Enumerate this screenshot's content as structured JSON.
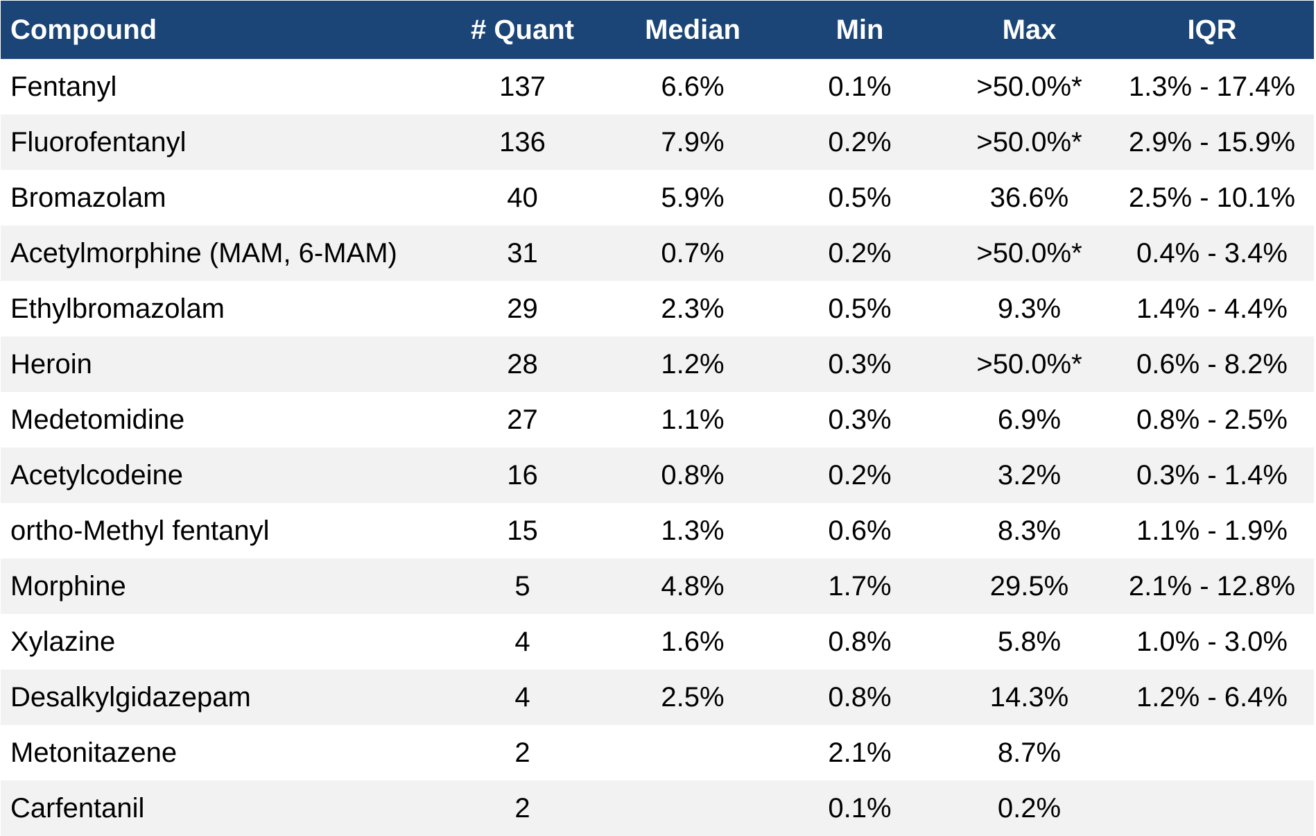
{
  "chart_data": {
    "type": "table",
    "columns": [
      "Compound",
      "# Quant",
      "Median",
      "Min",
      "Max",
      "IQR"
    ],
    "rows": [
      [
        "Fentanyl",
        "137",
        "6.6%",
        "0.1%",
        ">50.0%*",
        "1.3% - 17.4%"
      ],
      [
        "Fluorofentanyl",
        "136",
        "7.9%",
        "0.2%",
        ">50.0%*",
        "2.9% - 15.9%"
      ],
      [
        "Bromazolam",
        "40",
        "5.9%",
        "0.5%",
        "36.6%",
        "2.5% - 10.1%"
      ],
      [
        "Acetylmorphine (MAM, 6-MAM)",
        "31",
        "0.7%",
        "0.2%",
        ">50.0%*",
        "0.4% - 3.4%"
      ],
      [
        "Ethylbromazolam",
        "29",
        "2.3%",
        "0.5%",
        "9.3%",
        "1.4% - 4.4%"
      ],
      [
        "Heroin",
        "28",
        "1.2%",
        "0.3%",
        ">50.0%*",
        "0.6% - 8.2%"
      ],
      [
        "Medetomidine",
        "27",
        "1.1%",
        "0.3%",
        "6.9%",
        "0.8% - 2.5%"
      ],
      [
        "Acetylcodeine",
        "16",
        "0.8%",
        "0.2%",
        "3.2%",
        "0.3% - 1.4%"
      ],
      [
        "ortho-Methyl fentanyl",
        "15",
        "1.3%",
        "0.6%",
        "8.3%",
        "1.1% - 1.9%"
      ],
      [
        "Morphine",
        "5",
        "4.8%",
        "1.7%",
        "29.5%",
        "2.1% - 12.8%"
      ],
      [
        "Xylazine",
        "4",
        "1.6%",
        "0.8%",
        "5.8%",
        "1.0% - 3.0%"
      ],
      [
        "Desalkylgidazepam",
        "4",
        "2.5%",
        "0.8%",
        "14.3%",
        "1.2% - 6.4%"
      ],
      [
        "Metonitazene",
        "2",
        "",
        "2.1%",
        "8.7%",
        ""
      ],
      [
        "Carfentanil",
        "2",
        "",
        "0.1%",
        "0.2%",
        ""
      ]
    ],
    "colors": {
      "header_bg": "#1b4577",
      "header_text": "#ffffff",
      "row_alt": "#f2f2f2",
      "row": "#ffffff"
    }
  }
}
